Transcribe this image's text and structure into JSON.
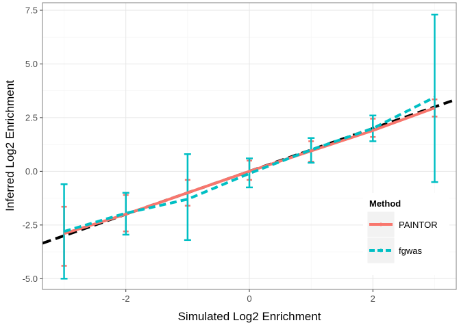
{
  "chart_data": {
    "type": "line",
    "title": "",
    "xlabel": "Simulated Log2 Enrichment",
    "ylabel": "Inferred Log2 Enrichment",
    "xlim": [
      -3.35,
      3.35
    ],
    "ylim": [
      -5.5,
      7.85
    ],
    "x_ticks": [
      -2,
      0,
      2
    ],
    "x_tick_labels": [
      "-2",
      "0",
      "2"
    ],
    "y_ticks": [
      -5.0,
      -2.5,
      0.0,
      2.5,
      5.0,
      7.5
    ],
    "y_tick_labels": [
      "-5.0",
      "-2.5",
      "0.0",
      "2.5",
      "5.0",
      "7.5"
    ],
    "grid": true,
    "legend": {
      "title": "Method",
      "placement": "bottom-right"
    },
    "series": [
      {
        "name": "PAINTOR",
        "color": "#F8766D",
        "x": [
          -3,
          -2,
          -1,
          0,
          1,
          2,
          3
        ],
        "y": [
          -2.9,
          -2.0,
          -1.0,
          0.0,
          0.95,
          1.9,
          2.95
        ],
        "err_low": [
          -4.4,
          -2.8,
          -1.6,
          -0.4,
          0.45,
          1.6,
          2.55
        ],
        "err_high": [
          -1.65,
          -1.1,
          -0.4,
          0.5,
          1.4,
          2.45,
          3.35
        ]
      },
      {
        "name": "fgwas",
        "color": "#00BFC4",
        "x": [
          -3,
          -2,
          -1,
          0,
          1,
          2,
          3
        ],
        "y": [
          -2.8,
          -1.95,
          -1.3,
          -0.1,
          1.0,
          2.0,
          3.45
        ],
        "err_low": [
          -5.0,
          -2.95,
          -3.2,
          -0.75,
          0.4,
          1.4,
          -0.5
        ],
        "err_high": [
          -0.6,
          -1.0,
          0.8,
          0.6,
          1.55,
          2.6,
          7.3
        ]
      }
    ],
    "reference_line": {
      "style": "dashed",
      "color": "#000000",
      "x": [
        -3.35,
        3.35
      ],
      "y": [
        -3.35,
        3.35
      ]
    }
  }
}
